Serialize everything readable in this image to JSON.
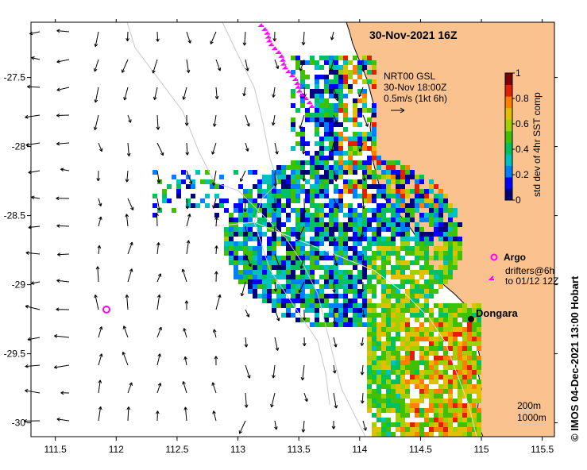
{
  "map": {
    "title": "30-Nov-2021 16Z",
    "credit": "© IMOS 04-Dec-2021 13:00 Hobart",
    "lon_ticks": [
      "111.5",
      "112",
      "112.5",
      "113",
      "113.5",
      "114",
      "114.5",
      "115",
      "115.5"
    ],
    "lat_ticks": [
      "-27.5",
      "-28",
      "-28.5",
      "-29",
      "-29.5",
      "-30"
    ],
    "lon_range": [
      111.3,
      115.6
    ],
    "lat_range": [
      -30.1,
      -27.1
    ],
    "land_color": "#f9c28f",
    "ocean_color": "#ffffff"
  },
  "current_legend": {
    "line1": "NRT00 GSL",
    "line2": "30-Nov 18:00Z",
    "line3": "0.5m/s (1kt 6h)"
  },
  "colorbar": {
    "label": "std dev of 4hr SST comp",
    "ticks": [
      "1",
      "0.8",
      "0.6",
      "0.4",
      "0.2",
      "0"
    ],
    "colors": [
      "#00007f",
      "#0000ff",
      "#0080ff",
      "#00c0c0",
      "#00c060",
      "#40c000",
      "#a0d000",
      "#e0c000",
      "#ff8000",
      "#e02000",
      "#800000"
    ]
  },
  "markers": {
    "argo_label": "Argo",
    "drifters_line1": "drifters@6h",
    "drifters_line2": "to 01/12 12Z",
    "marker_color": "#ff00ff",
    "argo_position": {
      "lon": 111.92,
      "lat": -29.18
    }
  },
  "place": {
    "name": "Dongara",
    "lon": 114.93,
    "lat": -29.25
  },
  "isobaths": {
    "depth1": "200m",
    "depth2": "1000m"
  }
}
